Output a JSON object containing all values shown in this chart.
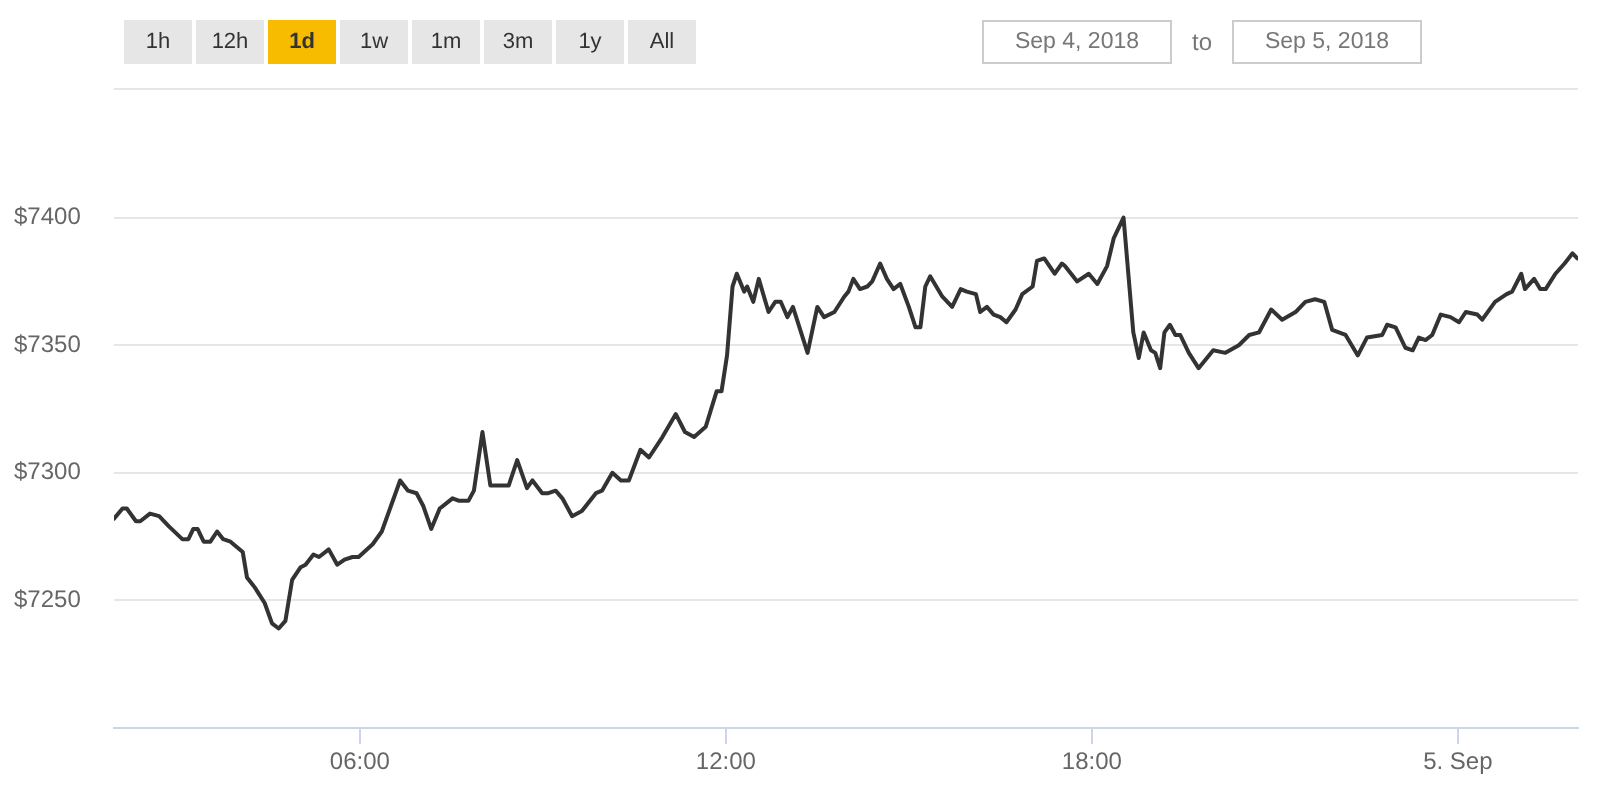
{
  "chart_data": {
    "type": "line",
    "annotations": [
      "1h",
      "12h",
      "1d",
      "1w",
      "1m",
      "3m",
      "1y",
      "All",
      "Sep 4, 2018",
      "to",
      "Sep 5, 2018"
    ],
    "x": [
      1.97,
      2.11,
      2.18,
      2.33,
      2.4,
      2.56,
      2.71,
      2.87,
      3.09,
      3.19,
      3.27,
      3.34,
      3.44,
      3.55,
      3.66,
      3.76,
      3.88,
      4.08,
      4.15,
      4.28,
      4.44,
      4.56,
      4.67,
      4.78,
      4.89,
      5.03,
      5.11,
      5.24,
      5.33,
      5.49,
      5.63,
      5.75,
      5.88,
      5.98,
      6.21,
      6.36,
      6.51,
      6.66,
      6.79,
      6.93,
      7.04,
      7.17,
      7.31,
      7.52,
      7.63,
      7.78,
      7.87,
      8.01,
      8.14,
      8.44,
      8.58,
      8.74,
      8.83,
      8.99,
      9.09,
      9.21,
      9.32,
      9.48,
      9.64,
      9.87,
      9.97,
      10.14,
      10.28,
      10.41,
      10.6,
      10.74,
      10.96,
      11.18,
      11.33,
      11.48,
      11.67,
      11.85,
      11.93,
      12.02,
      12.11,
      12.18,
      12.3,
      12.35,
      12.45,
      12.54,
      12.7,
      12.81,
      12.9,
      13.01,
      13.1,
      13.34,
      13.5,
      13.61,
      13.78,
      13.94,
      14.01,
      14.09,
      14.2,
      14.32,
      14.4,
      14.53,
      14.64,
      14.75,
      14.86,
      15.0,
      15.11,
      15.19,
      15.27,
      15.35,
      15.55,
      15.71,
      15.85,
      15.95,
      16.1,
      16.17,
      16.28,
      16.39,
      16.5,
      16.6,
      16.75,
      16.86,
      17.03,
      17.1,
      17.22,
      17.39,
      17.51,
      17.56,
      17.76,
      17.95,
      18.09,
      18.25,
      18.36,
      18.52,
      18.68,
      18.77,
      18.85,
      18.97,
      19.04,
      19.12,
      19.19,
      19.28,
      19.37,
      19.45,
      19.59,
      19.75,
      19.99,
      20.19,
      20.41,
      20.58,
      20.74,
      20.94,
      21.12,
      21.34,
      21.5,
      21.66,
      21.81,
      21.94,
      22.16,
      22.36,
      22.51,
      22.76,
      22.84,
      22.98,
      23.14,
      23.26,
      23.36,
      23.47,
      23.58,
      23.72,
      23.88,
      24.02,
      24.13,
      24.32,
      24.4,
      24.61,
      24.8,
      24.89,
      25.04,
      25.1,
      25.25,
      25.35,
      25.44,
      25.6,
      25.75,
      25.88,
      25.96
    ],
    "values": [
      7282,
      7286,
      7286,
      7281,
      7281,
      7284,
      7283,
      7279,
      7274,
      7274,
      7278,
      7278,
      7273,
      7273,
      7277,
      7274,
      7273,
      7269,
      7259,
      7255,
      7249,
      7241,
      7239,
      7242,
      7258,
      7263,
      7264,
      7268,
      7267,
      7270,
      7264,
      7266,
      7267,
      7267,
      7272,
      7277,
      7287,
      7297,
      7293,
      7292,
      7287,
      7278,
      7286,
      7290,
      7289,
      7289,
      7293,
      7316,
      7295,
      7295,
      7305,
      7294,
      7297,
      7292,
      7292,
      7293,
      7290,
      7283,
      7285,
      7292,
      7293,
      7300,
      7297,
      7297,
      7309,
      7306,
      7314,
      7323,
      7316,
      7314,
      7318,
      7332,
      7332,
      7346,
      7373,
      7378,
      7371,
      7373,
      7367,
      7376,
      7363,
      7367,
      7367,
      7361,
      7365,
      7347,
      7365,
      7361,
      7363,
      7369,
      7371,
      7376,
      7372,
      7373,
      7375,
      7382,
      7376,
      7372,
      7374,
      7365,
      7357,
      7357,
      7373,
      7377,
      7369,
      7365,
      7372,
      7371,
      7370,
      7363,
      7365,
      7362,
      7361,
      7359,
      7364,
      7370,
      7373,
      7383,
      7384,
      7378,
      7382,
      7381,
      7375,
      7378,
      7374,
      7381,
      7392,
      7400,
      7355,
      7345,
      7355,
      7348,
      7347,
      7341,
      7355,
      7358,
      7354,
      7354,
      7347,
      7341,
      7348,
      7347,
      7350,
      7354,
      7355,
      7364,
      7360,
      7363,
      7367,
      7368,
      7367,
      7356,
      7354,
      7346,
      7353,
      7354,
      7358,
      7357,
      7349,
      7348,
      7353,
      7352,
      7354,
      7362,
      7361,
      7359,
      7363,
      7362,
      7360,
      7367,
      7370,
      7371,
      7378,
      7372,
      7376,
      7372,
      7372,
      7378,
      7382,
      7386,
      7384
    ],
    "color": "#333333",
    "line_style": "solid",
    "xlim": [
      1.97,
      25.97
    ],
    "ylim": [
      7200,
      7450
    ],
    "xticks": [
      {
        "value": 6,
        "label": "06:00"
      },
      {
        "value": 12,
        "label": "12:00"
      },
      {
        "value": 18,
        "label": "18:00"
      },
      {
        "value": 24,
        "label": "5. Sep"
      }
    ],
    "yticks": [
      {
        "value": 7250,
        "label": "$7250"
      },
      {
        "value": 7300,
        "label": "$7300"
      },
      {
        "value": 7350,
        "label": "$7350"
      },
      {
        "value": 7400,
        "label": "$7400"
      }
    ],
    "grid": "y"
  }
}
